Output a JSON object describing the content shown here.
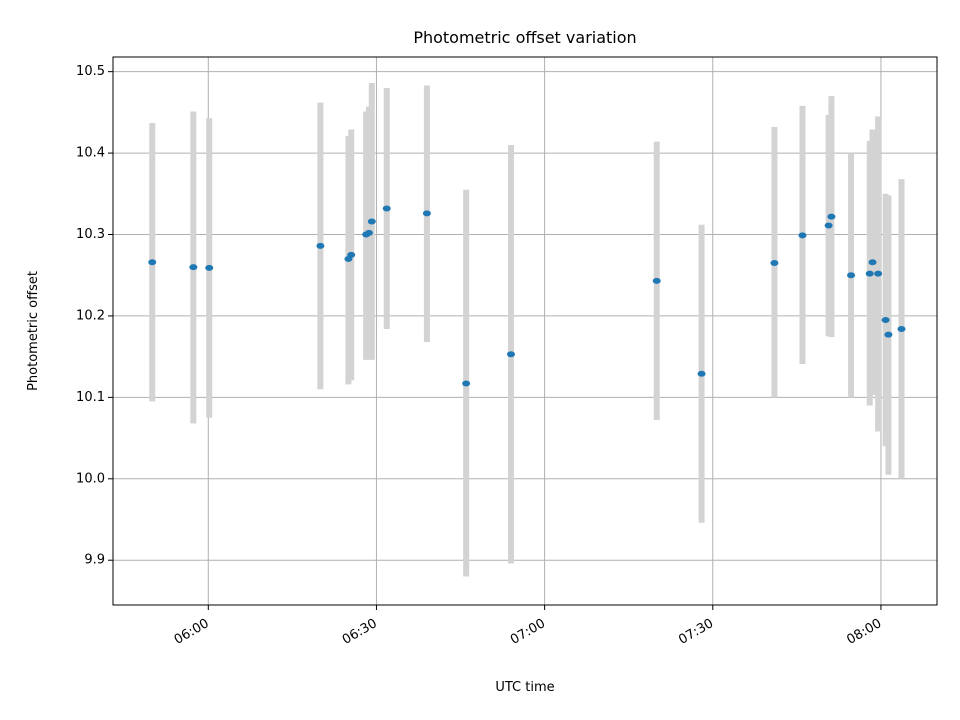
{
  "chart_data": {
    "type": "scatter",
    "title": "Photometric offset variation",
    "xlabel": "UTC time",
    "ylabel": "Photometric offset",
    "grid": true,
    "xlim": [
      "05:43",
      "08:10"
    ],
    "ylim": [
      9.845,
      10.518
    ],
    "x_ticks": [
      "06:00",
      "06:30",
      "07:00",
      "07:30",
      "08:00"
    ],
    "y_ticks": [
      9.9,
      10.0,
      10.1,
      10.2,
      10.3,
      10.4,
      10.5
    ],
    "y_tick_labels": [
      "9.9",
      "10.0",
      "10.1",
      "10.2",
      "10.3",
      "10.4",
      "10.5"
    ],
    "colors": {
      "point": "#1f77b4",
      "errorbar": "#d3d3d3",
      "grid": "#b0b0b0"
    },
    "points": [
      {
        "x": "05:50:00",
        "y": 10.266,
        "lo": 10.095,
        "hi": 10.437
      },
      {
        "x": "05:57:20",
        "y": 10.26,
        "lo": 10.068,
        "hi": 10.451
      },
      {
        "x": "06:00:10",
        "y": 10.259,
        "lo": 10.075,
        "hi": 10.443
      },
      {
        "x": "06:20:00",
        "y": 10.286,
        "lo": 10.11,
        "hi": 10.462
      },
      {
        "x": "06:25:00",
        "y": 10.27,
        "lo": 10.116,
        "hi": 10.421
      },
      {
        "x": "06:25:30",
        "y": 10.275,
        "lo": 10.121,
        "hi": 10.429
      },
      {
        "x": "06:28:10",
        "y": 10.3,
        "lo": 10.146,
        "hi": 10.451
      },
      {
        "x": "06:28:40",
        "y": 10.302,
        "lo": 10.149,
        "hi": 10.457
      },
      {
        "x": "06:29:10",
        "y": 10.316,
        "lo": 10.146,
        "hi": 10.486
      },
      {
        "x": "06:31:50",
        "y": 10.332,
        "lo": 10.184,
        "hi": 10.48
      },
      {
        "x": "06:39:00",
        "y": 10.326,
        "lo": 10.168,
        "hi": 10.483
      },
      {
        "x": "06:46:00",
        "y": 10.117,
        "lo": 9.88,
        "hi": 10.355
      },
      {
        "x": "06:54:00",
        "y": 10.153,
        "lo": 9.896,
        "hi": 10.41
      },
      {
        "x": "07:20:00",
        "y": 10.243,
        "lo": 10.072,
        "hi": 10.414
      },
      {
        "x": "07:28:00",
        "y": 10.129,
        "lo": 9.946,
        "hi": 10.312
      },
      {
        "x": "07:41:00",
        "y": 10.265,
        "lo": 10.1,
        "hi": 10.432
      },
      {
        "x": "07:46:00",
        "y": 10.299,
        "lo": 10.141,
        "hi": 10.458
      },
      {
        "x": "07:50:40",
        "y": 10.311,
        "lo": 10.175,
        "hi": 10.447
      },
      {
        "x": "07:51:10",
        "y": 10.322,
        "lo": 10.174,
        "hi": 10.47
      },
      {
        "x": "07:54:40",
        "y": 10.25,
        "lo": 10.1,
        "hi": 10.4
      },
      {
        "x": "07:58:00",
        "y": 10.252,
        "lo": 10.09,
        "hi": 10.415
      },
      {
        "x": "07:58:30",
        "y": 10.266,
        "lo": 10.103,
        "hi": 10.429
      },
      {
        "x": "07:59:30",
        "y": 10.252,
        "lo": 10.058,
        "hi": 10.445
      },
      {
        "x": "08:00:50",
        "y": 10.195,
        "lo": 10.04,
        "hi": 10.35
      },
      {
        "x": "08:01:20",
        "y": 10.177,
        "lo": 10.005,
        "hi": 10.348
      },
      {
        "x": "08:03:40",
        "y": 10.184,
        "lo": 10.0,
        "hi": 10.368
      }
    ]
  }
}
